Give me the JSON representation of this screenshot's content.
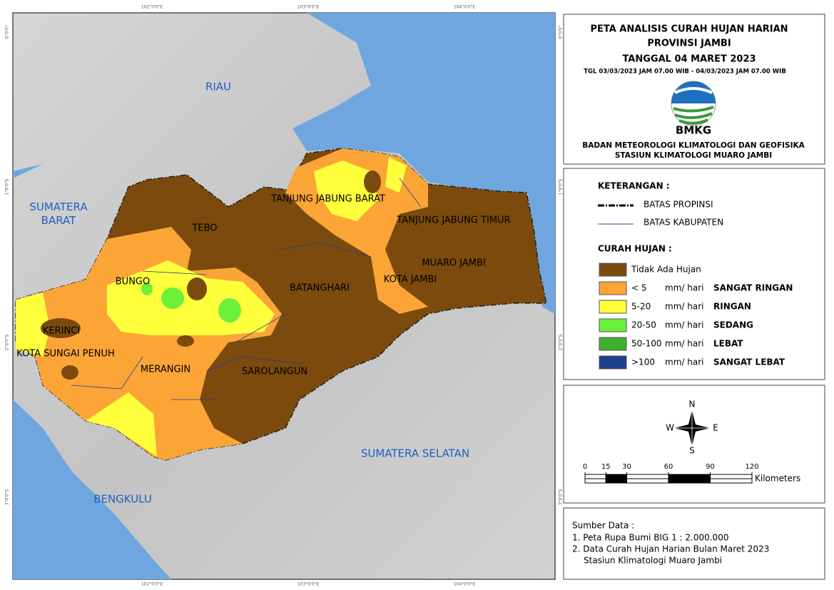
{
  "title": {
    "line1": "PETA ANALISIS CURAH HUJAN HARIAN",
    "line2": "PROVINSI JAMBI",
    "line3": "TANGGAL 04 MARET 2023",
    "period": "TGL 03/03/2023 JAM 07.00 WIB - 04/03/2023 JAM 07.00 WIB",
    "logo_text": "BMKG",
    "org1": "BADAN METEOROLOGI KLIMATOLOGI DAN GEOFISIKA",
    "org2": "STASIUN KLIMATOLOGI MUARO JAMBI"
  },
  "legend": {
    "heading": "KETERANGAN :",
    "boundaries": [
      "BATAS PROPINSI",
      "BATAS KABUPATEN"
    ],
    "rain_heading": "CURAH HUJAN :",
    "items": [
      {
        "label": "Tidak Ada Hujan",
        "color": "#7b4a0c"
      },
      {
        "label": "< 5",
        "unit": "mm/ hari",
        "category": "SANGAT RINGAN",
        "color": "#fba536"
      },
      {
        "label": "5-20",
        "unit": "mm/ hari",
        "category": "RINGAN",
        "color": "#ffff3c"
      },
      {
        "label": "20-50",
        "unit": "mm/ hari",
        "category": "SEDANG",
        "color": "#6cf03a"
      },
      {
        "label": "50-100",
        "unit": "mm/ hari",
        "category": "LEBAT",
        "color": "#3fae2a"
      },
      {
        "label": ">100",
        "unit": "mm/ hari",
        "category": "SANGAT LEBAT",
        "color": "#1e3f8c"
      }
    ]
  },
  "compass": {
    "n": "N",
    "e": "E",
    "s": "S",
    "w": "W"
  },
  "scale": {
    "ticks": [
      0,
      15,
      30,
      60,
      90,
      120
    ],
    "unit": "Kilometers"
  },
  "source": {
    "heading": "Sumber Data :",
    "lines": [
      "1. Peta Rupa Bumi BIG 1 : 2.000.000",
      "2. Data Curah Hujan Harian Bulan Maret 2023",
      "Stasiun Klimatologi Muaro Jambi"
    ]
  },
  "map": {
    "lon_ticks": [
      "102°0'0\"E",
      "103°0'0\"E",
      "104°0'0\"E"
    ],
    "lat_ticks": [
      "0°0'0\"",
      "1°0'0\"S",
      "2°0'0\"S",
      "3°0'0\"S"
    ],
    "neighbors": [
      "RIAU",
      "SUMATERA BARAT",
      "SUMATERA SELATAN",
      "BENGKULU"
    ],
    "regions": [
      "TEBO",
      "TANJUNG JABUNG BARAT",
      "TANJUNG JABUNG TIMUR",
      "MUARO JAMBI",
      "KOTA JAMBI",
      "BUNGO",
      "BATANGHARI",
      "KERINCI",
      "KOTA SUNGAI PENUH",
      "MERANGIN",
      "SAROLANGUN"
    ]
  }
}
